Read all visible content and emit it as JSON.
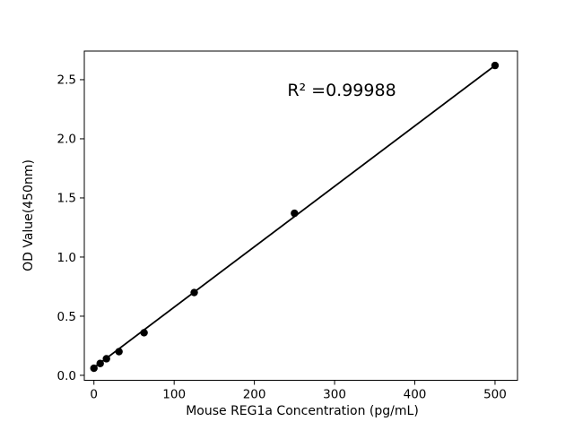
{
  "figure": {
    "background": "#ffffff"
  },
  "chart_data": {
    "type": "scatter",
    "title": "",
    "xlabel": "Mouse REG1a Concentration (pg/mL)",
    "ylabel": "OD Value(450nm)",
    "annotation": "R² =0.99988",
    "points": [
      {
        "x": 0,
        "y": 0.06
      },
      {
        "x": 7.8,
        "y": 0.1
      },
      {
        "x": 15.6,
        "y": 0.14
      },
      {
        "x": 31.25,
        "y": 0.2
      },
      {
        "x": 62.5,
        "y": 0.36
      },
      {
        "x": 125,
        "y": 0.7
      },
      {
        "x": 250,
        "y": 1.37
      },
      {
        "x": 500,
        "y": 2.62
      }
    ],
    "trendline": {
      "x": [
        0,
        500
      ],
      "y": [
        0.065,
        2.62
      ]
    },
    "xticks": [
      0,
      100,
      200,
      300,
      400,
      500
    ],
    "xtick_labels": [
      "0",
      "100",
      "200",
      "300",
      "400",
      "500"
    ],
    "yticks": [
      0.0,
      0.5,
      1.0,
      1.5,
      2.0,
      2.5
    ],
    "ytick_labels": [
      "0.0",
      "0.5",
      "1.0",
      "1.5",
      "2.0",
      "2.5"
    ],
    "xlim": [
      -12,
      528
    ],
    "ylim": [
      -0.042,
      2.742
    ],
    "grid": false,
    "legend": false,
    "marker_color": "#000000",
    "line_color": "#000000",
    "axis_color": "#000000"
  }
}
